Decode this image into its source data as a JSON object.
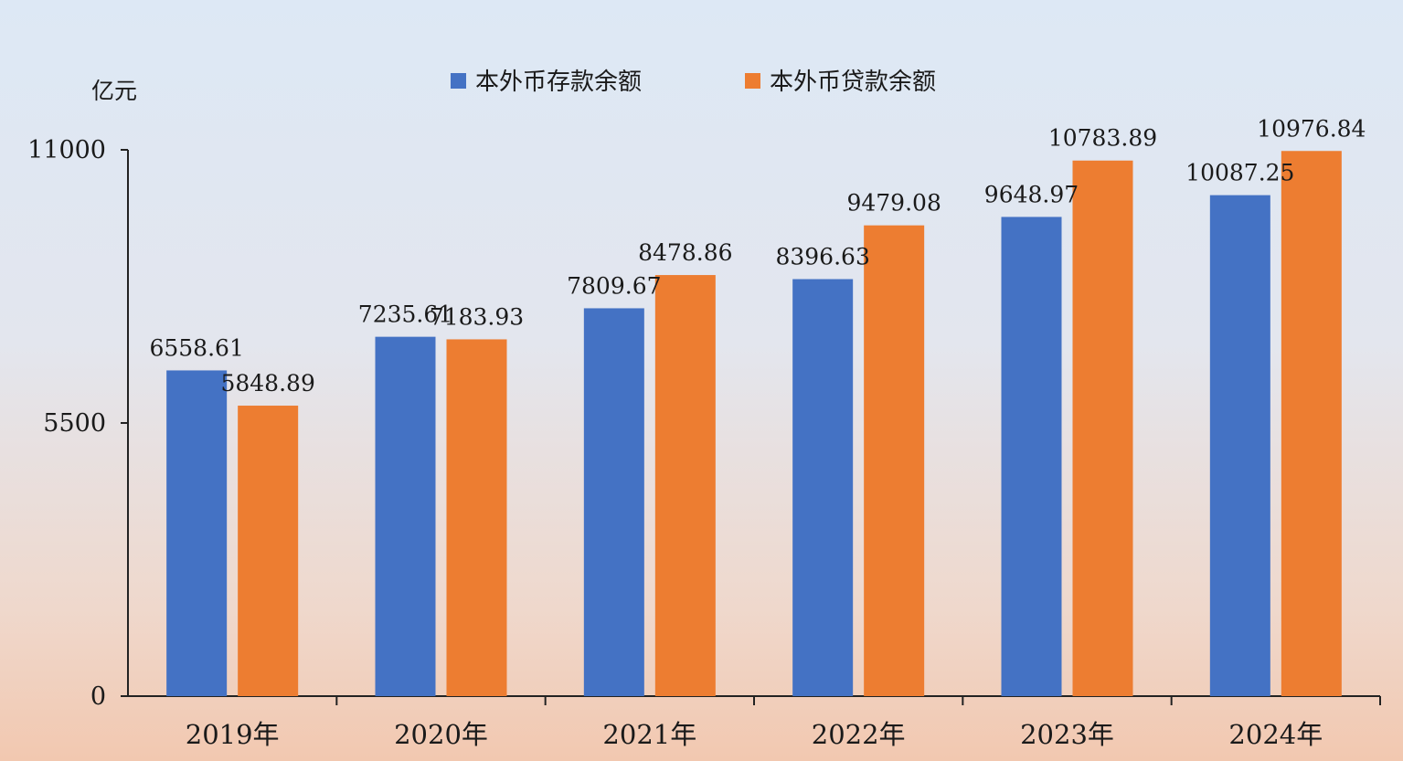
{
  "chart_data": {
    "type": "bar",
    "unit": "亿元",
    "categories": [
      "2019年",
      "2020年",
      "2021年",
      "2022年",
      "2023年",
      "2024年"
    ],
    "series": [
      {
        "name": "本外币存款余额",
        "color": "#4472c4",
        "values": [
          6558.61,
          7235.61,
          7809.67,
          8396.63,
          9648.97,
          10087.25
        ],
        "labels": [
          "6558.61",
          "7235.61",
          "7809.67",
          "8396.63",
          "9648.97",
          "10087.25"
        ]
      },
      {
        "name": "本外币贷款余额",
        "color": "#ed7d31",
        "values": [
          5848.89,
          7183.93,
          8478.86,
          9479.08,
          10783.89,
          10976.84
        ],
        "labels": [
          "5848.89",
          "7183.93",
          "8478.86",
          "9479.08",
          "10783.89",
          "10976.84"
        ]
      }
    ],
    "yticks": [
      "0",
      "5500",
      "11000"
    ],
    "ylim": [
      0,
      11000
    ],
    "legend_position": "top-center",
    "grid": false
  }
}
